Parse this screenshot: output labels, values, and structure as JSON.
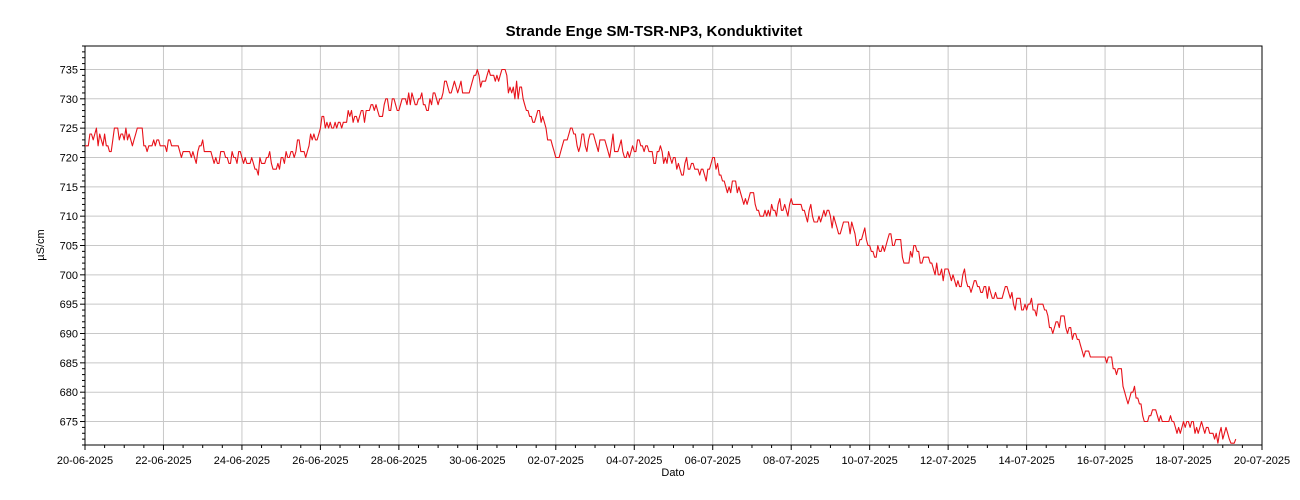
{
  "chart_data": {
    "type": "line",
    "title": "Strande Enge SM-TSR-NP3, Konduktivitet",
    "xlabel": "Dato",
    "ylabel": "µS/cm",
    "x_tick_labels": [
      "20-06-2025",
      "22-06-2025",
      "24-06-2025",
      "26-06-2025",
      "28-06-2025",
      "30-06-2025",
      "02-07-2025",
      "04-07-2025",
      "06-07-2025",
      "08-07-2025",
      "10-07-2025",
      "12-07-2025",
      "14-07-2025",
      "16-07-2025",
      "18-07-2025",
      "20-07-2025"
    ],
    "y_ticks": [
      675,
      680,
      685,
      690,
      695,
      700,
      705,
      710,
      715,
      720,
      725,
      730,
      735
    ],
    "xlim": [
      "2025-06-20",
      "2025-07-20"
    ],
    "ylim": [
      671,
      739
    ],
    "grid": true,
    "series": [
      {
        "color": "#e8121a",
        "x": [
          "2025-06-20",
          "2025-06-21",
          "2025-06-22",
          "2025-06-23",
          "2025-06-24",
          "2025-06-25",
          "2025-06-26",
          "2025-06-27",
          "2025-06-28",
          "2025-06-29",
          "2025-06-30",
          "2025-07-01",
          "2025-07-02",
          "2025-07-03",
          "2025-07-04",
          "2025-07-05",
          "2025-07-06",
          "2025-07-07",
          "2025-07-08",
          "2025-07-09",
          "2025-07-10",
          "2025-07-11",
          "2025-07-12",
          "2025-07-13",
          "2025-07-14",
          "2025-07-15",
          "2025-07-16",
          "2025-07-17",
          "2025-07-18",
          "2025-07-19"
        ],
        "values": [
          722,
          724,
          722,
          721,
          720,
          718,
          725,
          727,
          730,
          731,
          733,
          732,
          722,
          723,
          721,
          719,
          718,
          713,
          711,
          709,
          706,
          704,
          700,
          698,
          695,
          691,
          686,
          677,
          675,
          672
        ]
      }
    ]
  }
}
